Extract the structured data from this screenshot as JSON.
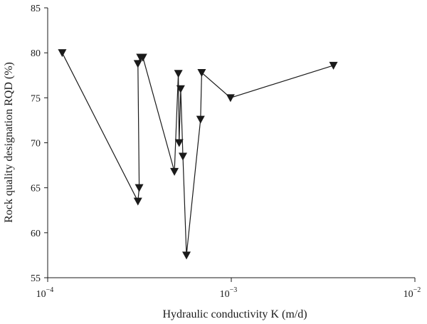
{
  "chart_data": {
    "type": "line",
    "title": "",
    "xlabel": "Hydraulic conductivity K (m/d)",
    "ylabel": "Rock quality designation RQD (%)",
    "x_scale": "log",
    "xlim": [
      0.0001,
      0.01
    ],
    "ylim": [
      55,
      85
    ],
    "x_ticks": [
      {
        "value": 0.0001,
        "base": "10",
        "exp": "−4"
      },
      {
        "value": 0.001,
        "base": "10",
        "exp": "−3"
      },
      {
        "value": 0.01,
        "base": "10",
        "exp": "−2"
      }
    ],
    "y_ticks": [
      55,
      60,
      65,
      70,
      75,
      80,
      85
    ],
    "grid": false,
    "legend": "none",
    "marker": "triangle-down",
    "color": "#1a1a1a",
    "series": [
      {
        "points": [
          [
            0.00012,
            80.0
          ],
          [
            0.00031,
            63.5
          ],
          [
            0.000315,
            65.0
          ],
          [
            0.00031,
            78.8
          ],
          [
            0.00032,
            79.5
          ],
          [
            0.00033,
            79.5
          ],
          [
            0.00049,
            66.8
          ],
          [
            0.000515,
            77.7
          ],
          [
            0.00052,
            70.0
          ],
          [
            0.00053,
            76.0
          ],
          [
            0.000545,
            68.5
          ],
          [
            0.00057,
            57.5
          ],
          [
            0.00068,
            72.6
          ],
          [
            0.00069,
            77.8
          ],
          [
            0.00099,
            75.0
          ],
          [
            0.0036,
            78.6
          ]
        ]
      }
    ]
  }
}
